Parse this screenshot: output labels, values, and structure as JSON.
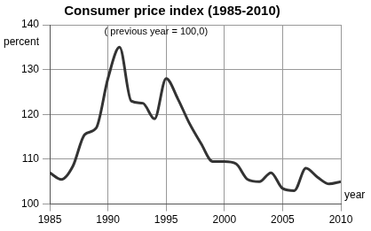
{
  "chart_data": {
    "type": "line",
    "title": "Consumer price index (1985-2010)",
    "subtitle": "( previous year = 100,0)",
    "ylabel": "percent",
    "xlabel": "year",
    "x": [
      1985,
      1986,
      1987,
      1988,
      1989,
      1990,
      1991,
      1992,
      1993,
      1994,
      1995,
      1996,
      1997,
      1998,
      1999,
      2000,
      2001,
      2002,
      2003,
      2004,
      2005,
      2006,
      2007,
      2008,
      2009,
      2010
    ],
    "values": [
      107,
      105.5,
      108.5,
      115.5,
      117,
      128,
      135,
      123,
      122.5,
      119,
      128,
      123.5,
      118,
      113.5,
      109.5,
      109.5,
      109,
      105.5,
      105,
      107,
      103.5,
      103,
      108,
      106,
      104.5,
      105
    ],
    "color": "#333333",
    "xlim": [
      1985,
      2010
    ],
    "xticks": [
      1985,
      1990,
      1995,
      2000,
      2005,
      2010
    ],
    "ylim": [
      100,
      140
    ],
    "yticks": [
      100,
      110,
      120,
      130,
      140
    ],
    "grid": true
  }
}
